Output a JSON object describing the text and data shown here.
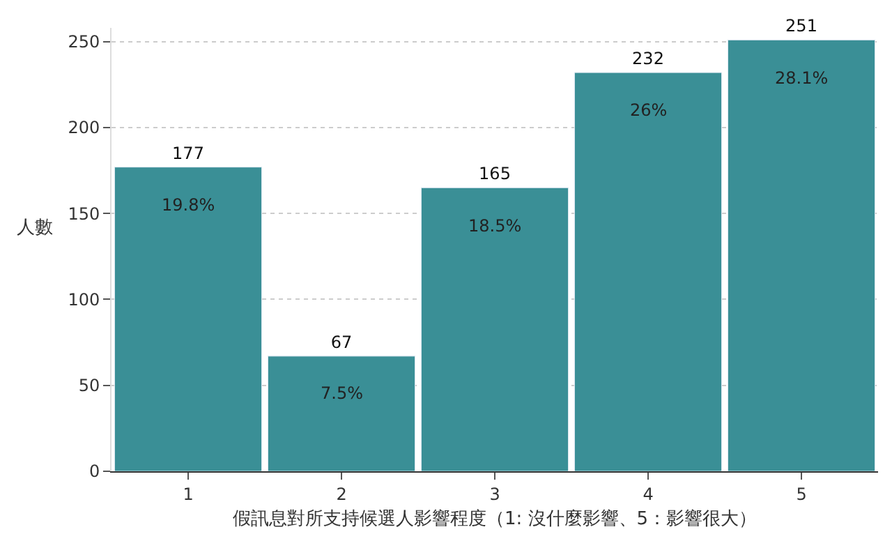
{
  "chart_data": {
    "type": "bar",
    "xlabel": "假訊息對所支持候選人影響程度（1: 沒什麼影響、5：影響很大）",
    "ylabel": "人數",
    "categories": [
      "1",
      "2",
      "3",
      "4",
      "5"
    ],
    "values": [
      177,
      67,
      165,
      232,
      251
    ],
    "color": "#3a8f96",
    "data_labels": true,
    "ylim": [
      0,
      258
    ],
    "yticks": [
      0,
      50,
      100,
      150,
      200,
      250
    ],
    "grid": "y",
    "annotations": [
      {
        "text": "19.8%",
        "x": "1",
        "y": 177
      },
      {
        "text": "7.5%",
        "x": "2",
        "y": 67
      },
      {
        "text": "18.5%",
        "x": "3",
        "y": 165
      },
      {
        "text": "26%",
        "x": "4",
        "y": 232
      },
      {
        "text": "28.1%",
        "x": "5",
        "y": 251
      }
    ]
  }
}
